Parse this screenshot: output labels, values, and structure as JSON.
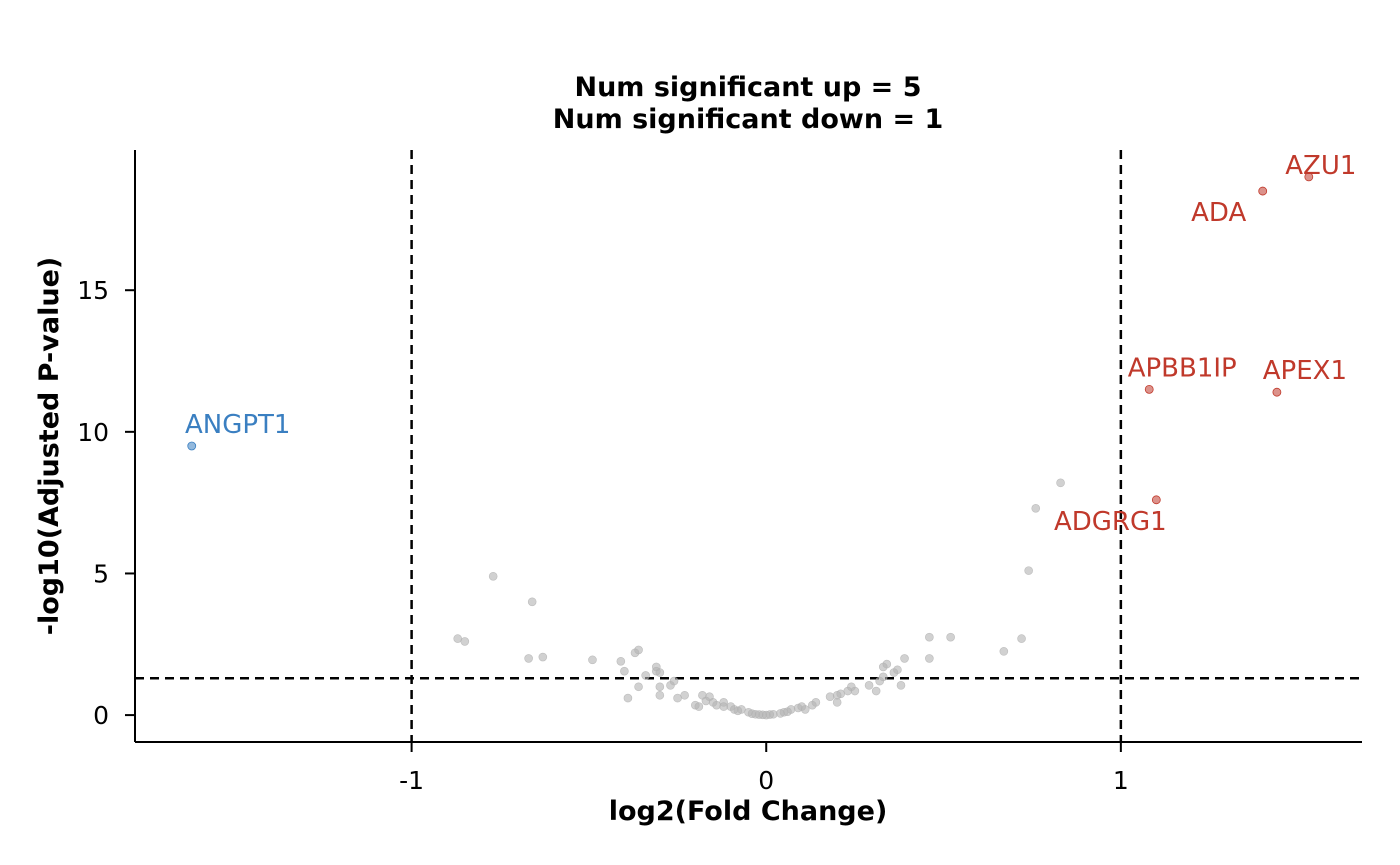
{
  "chart_data": {
    "type": "scatter",
    "title_lines": [
      "Num significant up = 5",
      "Num significant down = 1"
    ],
    "xlabel": "log2(Fold Change)",
    "ylabel": "-log10(Adjusted P-value)",
    "xlim": [
      -1.78,
      1.68
    ],
    "ylim": [
      -0.95,
      19.95
    ],
    "xticks": [
      -1,
      0,
      1
    ],
    "yticks": [
      0,
      5,
      10,
      15
    ],
    "x_tick_labels": [
      "-1",
      "0",
      "1"
    ],
    "y_tick_labels": [
      "0",
      "5",
      "10",
      "15"
    ],
    "grid": false,
    "thresholds": {
      "log2fc": [
        -1,
        1
      ],
      "neg_log10_padj": 1.3
    },
    "colors": {
      "up": "#c0392b",
      "down": "#3a7fc1",
      "ns": "#b3b3b3",
      "threshold_line": "#000000"
    },
    "highlighted": [
      {
        "label": "AZU1",
        "x": 1.53,
        "y": 19.0,
        "group": "up"
      },
      {
        "label": "ADA",
        "x": 1.4,
        "y": 18.5,
        "group": "up"
      },
      {
        "label": "APBB1IP",
        "x": 1.08,
        "y": 11.5,
        "group": "up"
      },
      {
        "label": "APEX1",
        "x": 1.44,
        "y": 11.4,
        "group": "up"
      },
      {
        "label": "ADGRG1",
        "x": 1.1,
        "y": 7.6,
        "group": "up"
      },
      {
        "label": "ANGPT1",
        "x": -1.62,
        "y": 9.5,
        "group": "down"
      }
    ],
    "background_points": [
      [
        -0.87,
        2.7
      ],
      [
        -0.85,
        2.6
      ],
      [
        -0.77,
        4.9
      ],
      [
        -0.67,
        2.0
      ],
      [
        -0.66,
        4.0
      ],
      [
        -0.63,
        2.05
      ],
      [
        -0.49,
        1.95
      ],
      [
        -0.41,
        1.9
      ],
      [
        -0.4,
        1.55
      ],
      [
        -0.39,
        0.6
      ],
      [
        -0.37,
        2.2
      ],
      [
        -0.36,
        2.3
      ],
      [
        -0.36,
        1.0
      ],
      [
        -0.34,
        1.4
      ],
      [
        -0.31,
        1.7
      ],
      [
        -0.31,
        1.55
      ],
      [
        -0.3,
        1.5
      ],
      [
        -0.3,
        0.7
      ],
      [
        -0.3,
        1.0
      ],
      [
        -0.27,
        1.05
      ],
      [
        -0.26,
        1.2
      ],
      [
        -0.25,
        0.6
      ],
      [
        -0.23,
        0.7
      ],
      [
        -0.2,
        0.35
      ],
      [
        -0.19,
        0.3
      ],
      [
        -0.18,
        0.7
      ],
      [
        -0.17,
        0.5
      ],
      [
        -0.16,
        0.65
      ],
      [
        -0.15,
        0.45
      ],
      [
        -0.14,
        0.35
      ],
      [
        -0.12,
        0.45
      ],
      [
        -0.12,
        0.3
      ],
      [
        -0.1,
        0.3
      ],
      [
        -0.09,
        0.2
      ],
      [
        -0.08,
        0.15
      ],
      [
        -0.07,
        0.2
      ],
      [
        -0.05,
        0.1
      ],
      [
        -0.04,
        0.05
      ],
      [
        -0.03,
        0.03
      ],
      [
        -0.02,
        0.02
      ],
      [
        -0.01,
        0.01
      ],
      [
        0.0,
        0.0
      ],
      [
        0.01,
        0.02
      ],
      [
        0.02,
        0.03
      ],
      [
        0.04,
        0.06
      ],
      [
        0.05,
        0.1
      ],
      [
        0.06,
        0.12
      ],
      [
        0.07,
        0.2
      ],
      [
        0.09,
        0.25
      ],
      [
        0.1,
        0.3
      ],
      [
        0.11,
        0.2
      ],
      [
        0.13,
        0.35
      ],
      [
        0.14,
        0.45
      ],
      [
        0.18,
        0.65
      ],
      [
        0.2,
        0.7
      ],
      [
        0.2,
        0.45
      ],
      [
        0.21,
        0.75
      ],
      [
        0.23,
        0.85
      ],
      [
        0.24,
        1.0
      ],
      [
        0.25,
        0.85
      ],
      [
        0.29,
        1.05
      ],
      [
        0.31,
        0.85
      ],
      [
        0.32,
        1.2
      ],
      [
        0.33,
        1.35
      ],
      [
        0.33,
        1.7
      ],
      [
        0.34,
        1.8
      ],
      [
        0.36,
        1.5
      ],
      [
        0.37,
        1.6
      ],
      [
        0.38,
        1.05
      ],
      [
        0.39,
        2.0
      ],
      [
        0.46,
        2.75
      ],
      [
        0.46,
        2.0
      ],
      [
        0.52,
        2.75
      ],
      [
        0.67,
        2.25
      ],
      [
        0.72,
        2.7
      ],
      [
        0.74,
        5.1
      ],
      [
        0.76,
        7.3
      ],
      [
        0.83,
        8.2
      ]
    ]
  }
}
